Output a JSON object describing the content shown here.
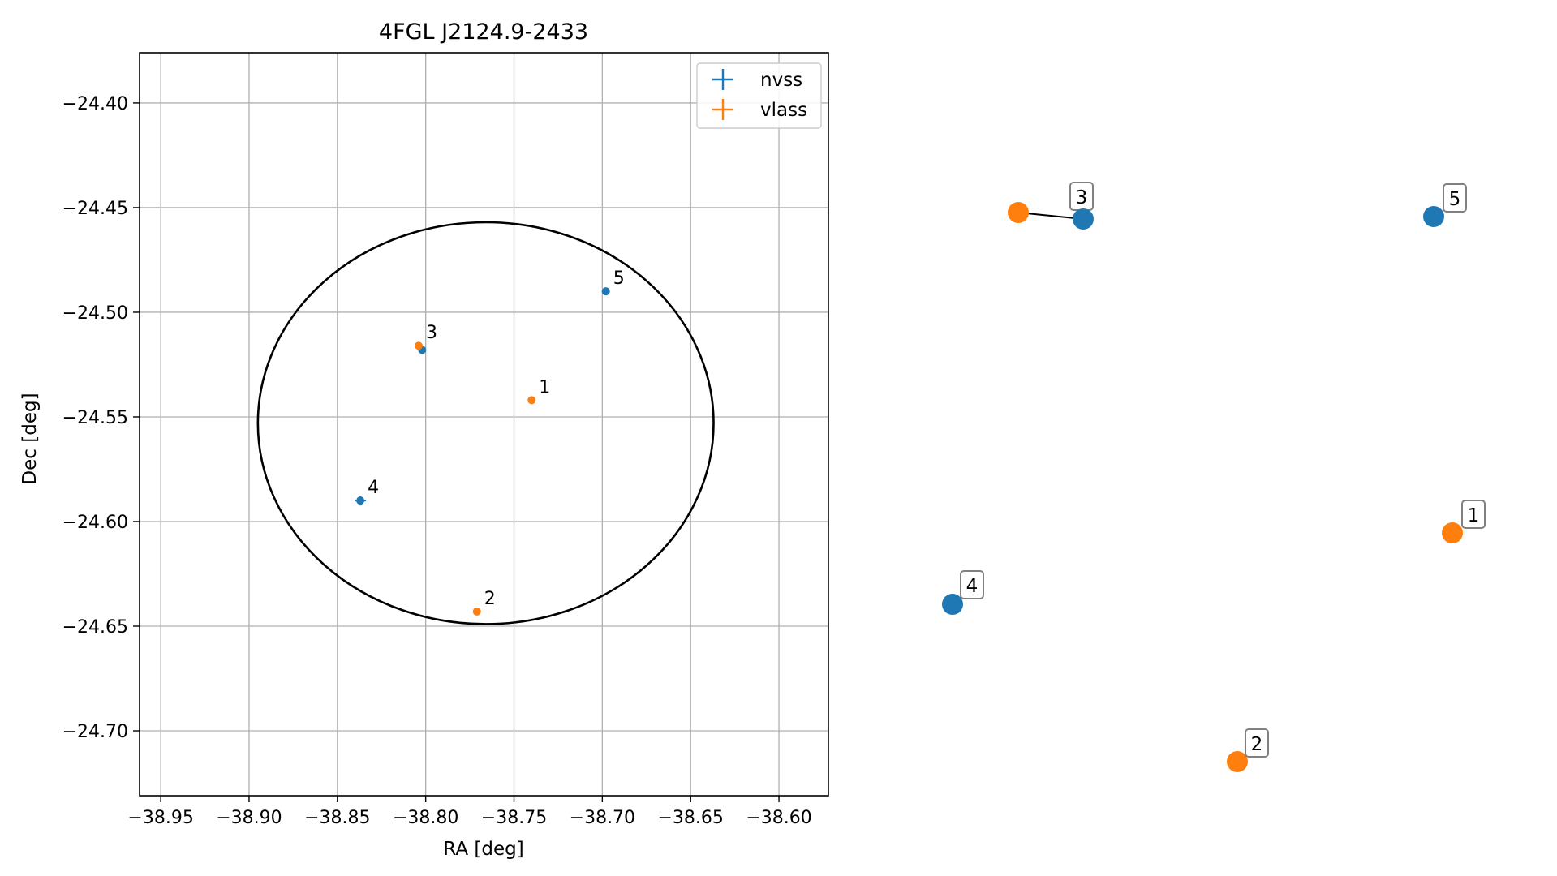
{
  "chart_data": [
    {
      "type": "scatter",
      "title": "4FGL J2124.9-2433",
      "xlabel": "RA [deg]",
      "ylabel": "Dec [deg]",
      "xlim": [
        -38.962,
        -38.572
      ],
      "ylim": [
        -24.731,
        -24.376
      ],
      "grid": true,
      "legend": "top-right",
      "xticks": [
        -38.95,
        -38.9,
        -38.85,
        -38.8,
        -38.75,
        -38.7,
        -38.65,
        -38.6
      ],
      "yticks": [
        -24.4,
        -24.45,
        -24.5,
        -24.55,
        -24.6,
        -24.65,
        -24.7
      ],
      "xtick_labels": [
        "−38.95",
        "−38.90",
        "−38.85",
        "−38.80",
        "−38.75",
        "−38.70",
        "−38.65",
        "−38.60"
      ],
      "ytick_labels": [
        "−24.40",
        "−24.45",
        "−24.50",
        "−24.55",
        "−24.60",
        "−24.65",
        "−24.70"
      ],
      "ellipse": {
        "center": [
          -38.766,
          -24.553
        ],
        "semi_x": 0.129,
        "semi_y": 0.096
      },
      "series": [
        {
          "name": "nvss",
          "color": "#1f77b4",
          "points": [
            {
              "id": "3",
              "x": -38.802,
              "y": -24.518
            },
            {
              "id": "4",
              "x": -38.837,
              "y": -24.59
            },
            {
              "id": "5",
              "x": -38.698,
              "y": -24.49
            }
          ]
        },
        {
          "name": "vlass",
          "color": "#ff7f0e",
          "points": [
            {
              "id": "1",
              "x": -38.74,
              "y": -24.542
            },
            {
              "id": "2",
              "x": -38.771,
              "y": -24.643
            },
            {
              "id": "3",
              "x": -38.804,
              "y": -24.516
            }
          ]
        }
      ]
    },
    {
      "type": "scatter",
      "series": [
        {
          "name": "nvss",
          "color": "#1f77b4",
          "ids": [
            "3",
            "4",
            "5"
          ]
        },
        {
          "name": "vlass",
          "color": "#ff7f0e",
          "ids": [
            "1",
            "2",
            "3"
          ]
        }
      ],
      "link": [
        "3",
        "3"
      ]
    }
  ]
}
